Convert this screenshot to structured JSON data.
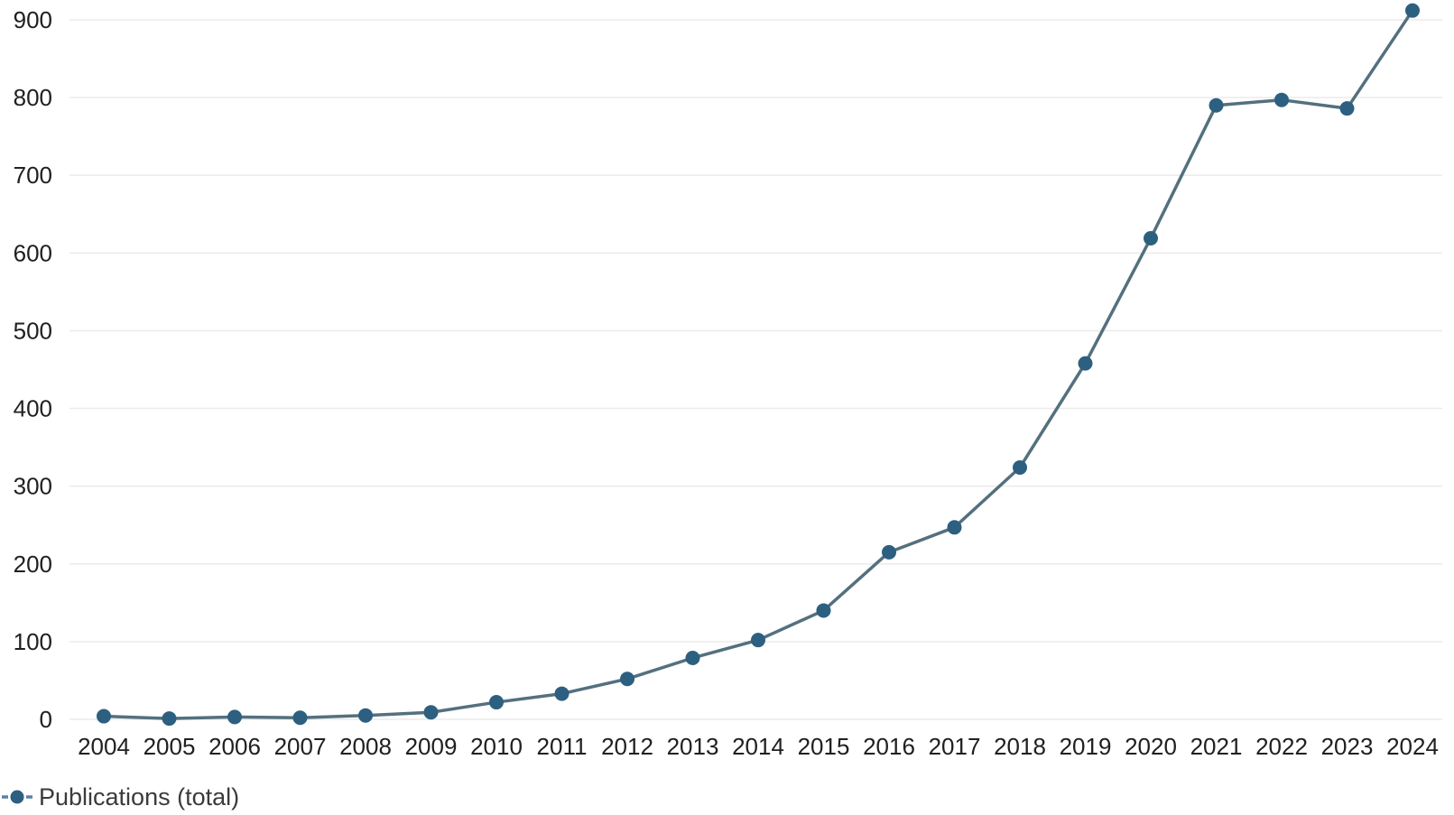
{
  "chart_data": {
    "type": "line",
    "title": "",
    "xlabel": "",
    "ylabel": "",
    "categories": [
      "2004",
      "2005",
      "2006",
      "2007",
      "2008",
      "2009",
      "2010",
      "2011",
      "2012",
      "2013",
      "2014",
      "2015",
      "2016",
      "2017",
      "2018",
      "2019",
      "2020",
      "2021",
      "2022",
      "2023",
      "2024"
    ],
    "series": [
      {
        "name": "Publications (total)",
        "values": [
          4,
          1,
          3,
          2,
          5,
          9,
          22,
          33,
          52,
          79,
          102,
          140,
          215,
          247,
          324,
          458,
          619,
          790,
          797,
          786,
          912
        ]
      }
    ],
    "ylim": [
      0,
      900
    ],
    "ytick_step": 100,
    "yticks": [
      0,
      100,
      200,
      300,
      400,
      500,
      600,
      700,
      800,
      900
    ],
    "grid": "horizontal",
    "legend_position": "bottom-left",
    "marker_style": "filled-circle-with-dashes",
    "line_color": "#54707e",
    "marker_color": "#2d5f80",
    "legend_dash_color": "#5b82a6",
    "gridline_color": "#ebebeb",
    "axis_label_color": "#202020",
    "legend_text_color": "#3b3b3b",
    "background_color": "#ffffff"
  },
  "legend": {
    "label": "Publications (total)"
  }
}
